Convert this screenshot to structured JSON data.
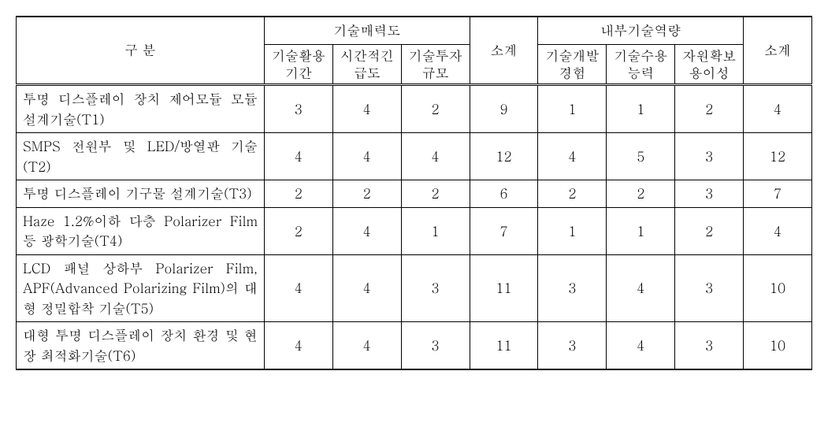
{
  "table": {
    "type": "table",
    "background_color": "#ffffff",
    "text_color": "#000000",
    "border_color": "#000000",
    "font_family": "Batang",
    "header_fontsize": 17,
    "cell_fontsize": 17,
    "header": {
      "category": "구 분",
      "group1_title": "기술매력도",
      "group1_cols": [
        "기술활용기간",
        "시간적긴급도",
        "기술투자규모"
      ],
      "subtotal1": "소계",
      "group2_title": "내부기술역량",
      "group2_cols": [
        "기술개발경험",
        "기술수용능력",
        "자원확보용이성"
      ],
      "subtotal2": "소계"
    },
    "rows": [
      {
        "label": "투명 디스플레이 장치 제어모듈 모듈 설계기술(T1)",
        "g1": [
          3,
          4,
          2
        ],
        "s1": 9,
        "g2": [
          1,
          1,
          2
        ],
        "s2": 4
      },
      {
        "label": "SMPS 전원부 및 LED/방열판 기술(T2)",
        "g1": [
          4,
          4,
          4
        ],
        "s1": 12,
        "g2": [
          4,
          5,
          3
        ],
        "s2": 12
      },
      {
        "label": "투명 디스플레이 기구물 설계기술(T3)",
        "g1": [
          2,
          2,
          2
        ],
        "s1": 6,
        "g2": [
          2,
          2,
          3
        ],
        "s2": 7
      },
      {
        "label": "Haze 1.2%이하 다층 Polarizer Film 등 광학기술(T4)",
        "g1": [
          2,
          4,
          1
        ],
        "s1": 7,
        "g2": [
          1,
          1,
          2
        ],
        "s2": 4
      },
      {
        "label": "LCD 패널 상하부 Polarizer Film, APF(Advanced Polarizing Film)의 대형 정밀합착 기술(T5)",
        "g1": [
          4,
          4,
          3
        ],
        "s1": 11,
        "g2": [
          3,
          4,
          3
        ],
        "s2": 10
      },
      {
        "label": "대형 투명 디스플레이 장치 환경 및 현장 최적화기술(T6)",
        "g1": [
          4,
          4,
          3
        ],
        "s1": 11,
        "g2": [
          3,
          4,
          3
        ],
        "s2": 10
      }
    ]
  }
}
